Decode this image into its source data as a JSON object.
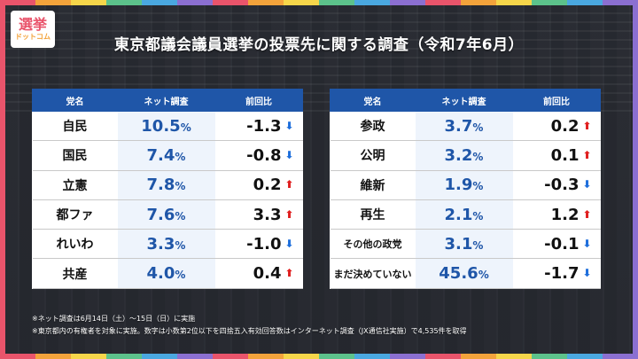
{
  "logo": {
    "line1": "選挙",
    "line2": "ドットコム"
  },
  "title": "東京都議会議員選挙の投票先に関する調査（令和7年6月）",
  "headers": {
    "party": "党名",
    "net": "ネット調査",
    "prev": "前回比"
  },
  "left_rows": [
    {
      "party": "自民",
      "net": "10.5",
      "pct": "%",
      "prev": "-1.3",
      "dir": "down"
    },
    {
      "party": "国民",
      "net": "7.4",
      "pct": "%",
      "prev": "-0.8",
      "dir": "down"
    },
    {
      "party": "立憲",
      "net": "7.8",
      "pct": "%",
      "prev": "0.2",
      "dir": "up"
    },
    {
      "party": "都ファ",
      "net": "7.6",
      "pct": "%",
      "prev": "3.3",
      "dir": "up"
    },
    {
      "party": "れいわ",
      "net": "3.3",
      "pct": "%",
      "prev": "-1.0",
      "dir": "down"
    },
    {
      "party": "共産",
      "net": "4.0",
      "pct": "%",
      "prev": "0.4",
      "dir": "up"
    }
  ],
  "right_rows": [
    {
      "party": "参政",
      "net": "3.7",
      "pct": "%",
      "prev": "0.2",
      "dir": "up"
    },
    {
      "party": "公明",
      "net": "3.2",
      "pct": "%",
      "prev": "0.1",
      "dir": "up"
    },
    {
      "party": "維新",
      "net": "1.9",
      "pct": "%",
      "prev": "-0.3",
      "dir": "down"
    },
    {
      "party": "再生",
      "net": "2.1",
      "pct": "%",
      "prev": "1.2",
      "dir": "up"
    },
    {
      "party": "その他の政党",
      "net": "3.1",
      "pct": "%",
      "prev": "-0.1",
      "dir": "down"
    },
    {
      "party": "まだ決めていない",
      "net": "45.6",
      "pct": "%",
      "prev": "-1.7",
      "dir": "down"
    }
  ],
  "notes": [
    "※ネット調査は6月14日（土）〜15日（日）に実施",
    "※東京都内の有権者を対象に実施。数字は小数第2位以下を四捨五入有効回答数はインターネット調査（JX通信社実施）で4,535件を取得"
  ],
  "colors": {
    "header_bg": "#1f56a8",
    "up": "#e02020",
    "down": "#1f6fdc"
  },
  "icons": {
    "up": "arrow-up-icon",
    "down": "arrow-down-icon"
  }
}
